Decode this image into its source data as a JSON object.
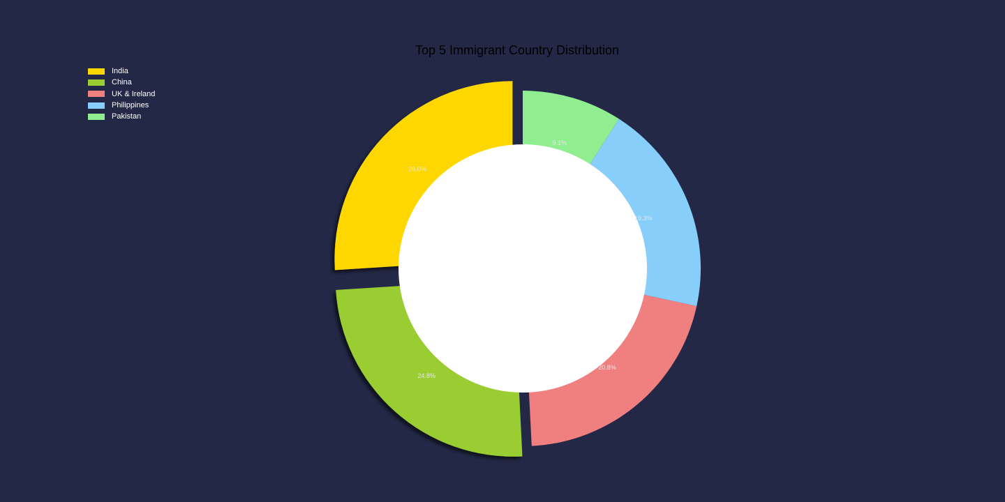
{
  "chart_data": {
    "type": "pie",
    "style": "donut",
    "title": "Top 5 Immigrant Country Distribution",
    "categories": [
      "India",
      "China",
      "UK & Ireland",
      "Philippines",
      "Pakistan"
    ],
    "values": [
      26.0,
      24.8,
      20.8,
      19.3,
      9.1
    ],
    "labels": [
      "26.0%",
      "24.8%",
      "20.8%",
      "19.3%",
      "9.1%"
    ],
    "colors": [
      "#ffd700",
      "#9acd32",
      "#f08080",
      "#87cefa",
      "#90ee90"
    ],
    "exploded": [
      "India",
      "China"
    ],
    "start_angle": 90,
    "direction": "counterclockwise",
    "legend_position": "top-left"
  },
  "colors": {
    "background": "#222845",
    "center_hole": "#ffffff",
    "title": "#000000",
    "legend_text": "#ffffff"
  }
}
